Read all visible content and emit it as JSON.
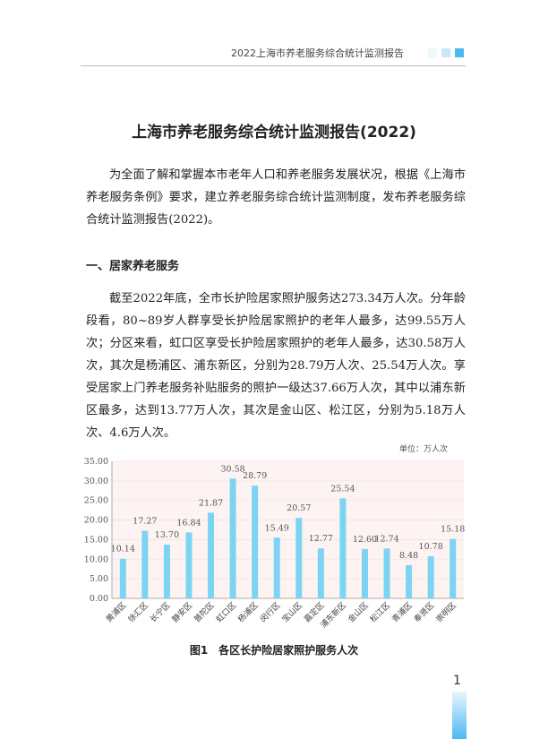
{
  "header": {
    "running_title": "2022上海市养老服务综合统计监测报告",
    "accent_colors": [
      "#eef9fd",
      "#c9e8f7",
      "#4db8f0"
    ]
  },
  "title": "上海市养老服务综合统计监测报告(2022)",
  "intro": "为全面了解和掌握本市老年人口和养老服务发展状况，根据《上海市养老服务条例》要求，建立养老服务综合统计监测制度，发布养老服务综合统计监测报告(2022)。",
  "section1": {
    "heading": "一、居家养老服务",
    "body": "截至2022年底，全市长护险居家照护服务达273.34万人次。分年龄段看，80~89岁人群享受长护险居家照护的老年人最多，达99.55万人次；分区来看，虹口区享受长护险居家照护的老年人最多，达30.58万人次，其次是杨浦区、浦东新区，分别为28.79万人次、25.54万人次。享受居家上门养老服务补贴服务的照护一级达37.66万人次，其中以浦东新区最多，达到13.77万人次，其次是金山区、松江区，分别为5.18万人次、4.6万人次。"
  },
  "chart_data": {
    "type": "bar",
    "title": "图1　各区长护险居家照护服务人次",
    "unit_label": "单位：万人次",
    "categories": [
      "黄浦区",
      "徐汇区",
      "长宁区",
      "静安区",
      "普陀区",
      "虹口区",
      "杨浦区",
      "闵行区",
      "宝山区",
      "嘉定区",
      "浦东新区",
      "金山区",
      "松江区",
      "青浦区",
      "奉贤区",
      "崇明区"
    ],
    "values": [
      10.14,
      17.27,
      13.7,
      16.84,
      21.87,
      30.58,
      28.79,
      15.49,
      20.57,
      12.77,
      25.54,
      12.6,
      12.74,
      8.48,
      10.78,
      15.18
    ],
    "value_labels": [
      "10.14",
      "17.27",
      "13.70",
      "16.84",
      "21.87",
      "30.58",
      "28.79",
      "15.49",
      "20.57",
      "12.77",
      "25.54",
      "12.60",
      "12.74",
      "8.48",
      "10.78",
      "15.18"
    ],
    "yticks": [
      "0.00",
      "5.00",
      "10.00",
      "15.00",
      "20.00",
      "25.00",
      "30.00",
      "35.00"
    ],
    "ylim": [
      0,
      35
    ],
    "bar_color": "#7dd3f3",
    "plot_bg": "#fdf3f2",
    "grid": true
  },
  "page_number": "1"
}
